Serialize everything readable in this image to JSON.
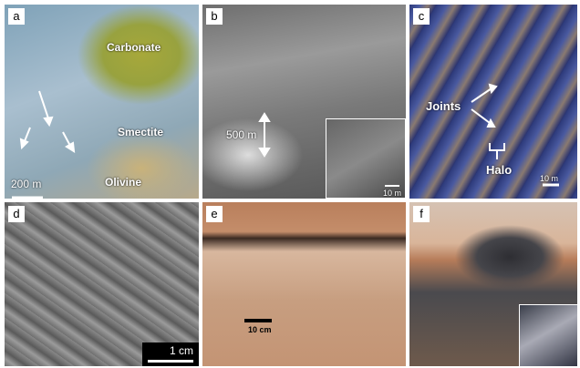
{
  "panels": [
    {
      "letter": "a",
      "labels": [
        "Carbonate",
        "Smectite",
        "Olivine"
      ],
      "scale": "200 m"
    },
    {
      "letter": "b",
      "scale": "500 m",
      "inset_scale": "10 m"
    },
    {
      "letter": "c",
      "labels": [
        "Joints",
        "Halo"
      ],
      "scale": "10 m"
    },
    {
      "letter": "d",
      "scale": "1 cm"
    },
    {
      "letter": "e",
      "scale": "10 cm"
    },
    {
      "letter": "f"
    }
  ]
}
